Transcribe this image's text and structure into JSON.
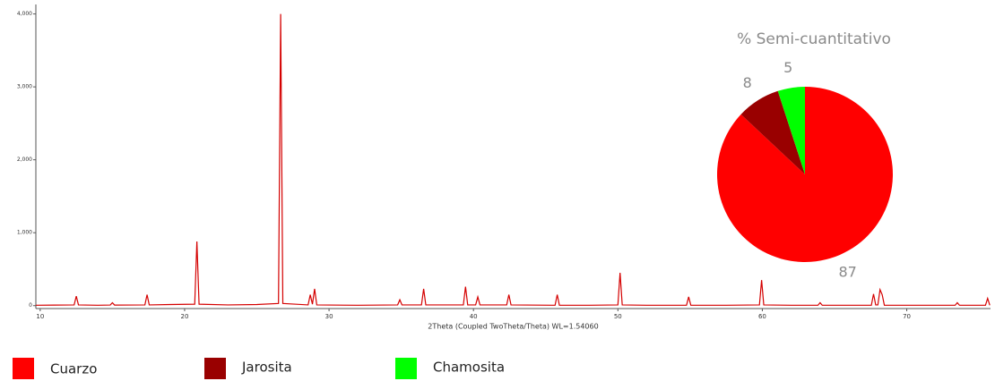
{
  "chart_data": [
    {
      "type": "line",
      "x_label": "2Theta (Coupled TwoTheta/Theta) WL=1.54060",
      "x": [
        9.7,
        11,
        12.35,
        12.5,
        12.65,
        14,
        14.85,
        15.0,
        15.15,
        17.25,
        17.4,
        17.55,
        19,
        20.7,
        20.85,
        21.0,
        23,
        25,
        26.5,
        26.65,
        26.8,
        28.55,
        28.7,
        28.85,
        29.0,
        29.15,
        32,
        34.75,
        34.9,
        35.05,
        36.4,
        36.55,
        36.7,
        39.3,
        39.45,
        39.6,
        40.15,
        40.3,
        40.45,
        42.3,
        42.45,
        42.6,
        45.65,
        45.8,
        45.95,
        48,
        50.0,
        50.15,
        50.3,
        52,
        54.75,
        54.9,
        55.05,
        57.5,
        59.8,
        59.95,
        60.1,
        62,
        63.85,
        64.0,
        64.15,
        66,
        67.55,
        67.7,
        67.85,
        68.0,
        68.15,
        68.3,
        68.45,
        71,
        73.35,
        73.5,
        73.65,
        75.45,
        75.6,
        75.75
      ],
      "series": [
        {
          "color": "#d40000",
          "values": [
            5,
            8,
            10,
            130,
            10,
            5,
            8,
            40,
            8,
            10,
            150,
            10,
            15,
            20,
            880,
            20,
            10,
            15,
            30,
            4000,
            30,
            10,
            150,
            20,
            230,
            10,
            5,
            10,
            80,
            10,
            10,
            230,
            10,
            10,
            260,
            10,
            10,
            120,
            10,
            10,
            150,
            10,
            5,
            150,
            5,
            5,
            10,
            450,
            10,
            5,
            5,
            120,
            5,
            5,
            10,
            350,
            10,
            5,
            5,
            40,
            5,
            5,
            5,
            160,
            10,
            10,
            220,
            150,
            5,
            5,
            5,
            40,
            5,
            5,
            100,
            5
          ]
        }
      ],
      "xlim": [
        9.7,
        75.8
      ],
      "ylim": [
        -40,
        4130
      ],
      "xticks": [
        10,
        20,
        30,
        40,
        50,
        60,
        70
      ],
      "yticks": [
        0,
        {
          "value": 1000,
          "label": "1,000"
        },
        {
          "value": 2000,
          "label": "2,000"
        },
        {
          "value": 3000,
          "label": "3,000"
        },
        {
          "value": 4000,
          "label": "4,000"
        }
      ]
    },
    {
      "type": "pie",
      "title": "% Semi-cuantitativo",
      "categories": [
        "Cuarzo",
        "Jarosita",
        "Chamosita"
      ],
      "values": [
        87,
        8,
        5
      ],
      "colors": [
        "#ff0000",
        "#990000",
        "#00ff00"
      ],
      "legend": "bottom"
    }
  ]
}
